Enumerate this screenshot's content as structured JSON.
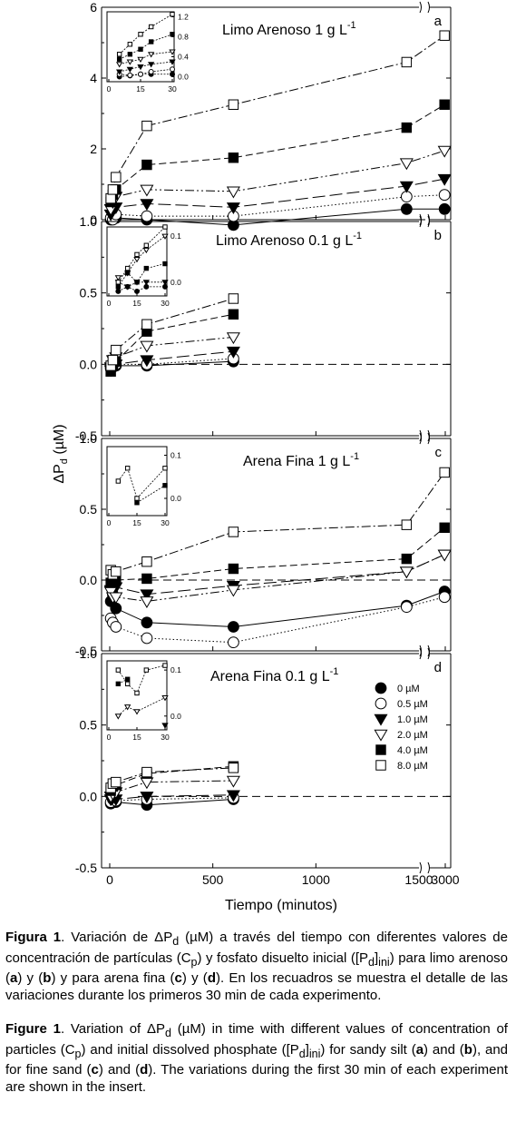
{
  "figure": {
    "ylabel": "ΔP",
    "ylabel_sub": "d",
    "ylabel_unit": "(µM)",
    "xlabel": "Tiempo  (minutos)",
    "x_ticks": [
      "0",
      "500",
      "1000",
      "1500",
      "3000"
    ],
    "legend": [
      {
        "label": "0 µM",
        "marker": "filled-circle"
      },
      {
        "label": "0.5 µM",
        "marker": "open-circle"
      },
      {
        "label": "1.0 µM",
        "marker": "filled-triangle-down"
      },
      {
        "label": "2.0 µM",
        "marker": "open-triangle-down"
      },
      {
        "label": "4.0 µM",
        "marker": "filled-square"
      },
      {
        "label": "8.0 µM",
        "marker": "open-square"
      }
    ]
  },
  "chart_data": [
    {
      "type": "scatter",
      "panel": "a",
      "title": "Limo Arenoso 1 g L",
      "title_sup": "-1",
      "ylim": [
        0,
        6
      ],
      "y_ticks": [
        "0",
        "2",
        "4",
        "6"
      ],
      "x_display": [
        0,
        1500,
        3000
      ],
      "series": [
        {
          "name": "0 µM",
          "line": "solid",
          "x": [
            5,
            15,
            30,
            180,
            600,
            1440,
            2880
          ],
          "y": [
            0.0,
            0.05,
            0.05,
            0.0,
            -0.15,
            0.3,
            0.3
          ]
        },
        {
          "name": "0.5 µM",
          "line": "dotted",
          "x": [
            5,
            15,
            30,
            180,
            600,
            1440,
            2880
          ],
          "y": [
            0.05,
            0.0,
            0.15,
            0.1,
            0.1,
            0.65,
            0.7
          ]
        },
        {
          "name": "1.0 µM",
          "line": "dash-long",
          "x": [
            5,
            15,
            30,
            180,
            600,
            1440,
            2880
          ],
          "y": [
            0.15,
            0.3,
            0.35,
            0.45,
            0.35,
            0.95,
            1.15
          ]
        },
        {
          "name": "2.0 µM",
          "line": "dashdotdot",
          "x": [
            5,
            15,
            30,
            180,
            600,
            1440,
            2880
          ],
          "y": [
            0.3,
            0.5,
            0.65,
            0.85,
            0.8,
            1.6,
            1.95
          ]
        },
        {
          "name": "4.0 µM",
          "line": "dash",
          "x": [
            5,
            15,
            30,
            180,
            600,
            1440,
            2880
          ],
          "y": [
            0.5,
            0.7,
            0.85,
            1.55,
            1.75,
            2.6,
            3.25
          ]
        },
        {
          "name": "8.0 µM",
          "line": "dashdot",
          "x": [
            5,
            15,
            30,
            180,
            600,
            1440,
            2880
          ],
          "y": [
            0.6,
            0.85,
            1.2,
            2.65,
            3.25,
            4.45,
            5.2
          ]
        }
      ],
      "inset": {
        "xlim": [
          0,
          30
        ],
        "ylim": [
          -0.1,
          1.3
        ],
        "x_ticks": [
          "0",
          "15",
          "30"
        ],
        "y_ticks": [
          "0.0",
          "0.4",
          "0.8",
          "1.2"
        ],
        "series": [
          {
            "name": "0 µM",
            "x": [
              5,
              10,
              15,
              20,
              30
            ],
            "y": [
              0.0,
              0.02,
              0.05,
              0.05,
              0.05
            ]
          },
          {
            "name": "0.5 µM",
            "x": [
              5,
              10,
              15,
              20,
              30
            ],
            "y": [
              0.05,
              0.03,
              0.05,
              0.1,
              0.15
            ]
          },
          {
            "name": "1.0 µM",
            "x": [
              5,
              10,
              15,
              20,
              30
            ],
            "y": [
              0.1,
              0.15,
              0.2,
              0.25,
              0.3
            ]
          },
          {
            "name": "2.0 µM",
            "x": [
              5,
              10,
              15,
              20,
              30
            ],
            "y": [
              0.25,
              0.3,
              0.35,
              0.45,
              0.5
            ]
          },
          {
            "name": "4.0 µM",
            "x": [
              5,
              10,
              15,
              20,
              30
            ],
            "y": [
              0.35,
              0.45,
              0.55,
              0.7,
              0.85
            ]
          },
          {
            "name": "8.0 µM",
            "x": [
              5,
              10,
              15,
              20,
              30
            ],
            "y": [
              0.45,
              0.65,
              0.85,
              1.0,
              1.25
            ]
          }
        ]
      }
    },
    {
      "type": "scatter",
      "panel": "b",
      "title": "Limo Arenoso 0.1 g L",
      "title_sup": "-1",
      "ylim": [
        -0.5,
        1.0
      ],
      "y_ticks": [
        "-0.5",
        "0.0",
        "0.5",
        "1.0"
      ],
      "series": [
        {
          "name": "0 µM",
          "line": "solid",
          "x": [
            5,
            15,
            30,
            180,
            600
          ],
          "y": [
            -0.03,
            -0.02,
            -0.01,
            -0.01,
            0.02
          ]
        },
        {
          "name": "0.5 µM",
          "line": "dotted",
          "x": [
            5,
            15,
            30,
            180,
            600
          ],
          "y": [
            -0.02,
            0.0,
            0.0,
            0.0,
            0.04
          ]
        },
        {
          "name": "1.0 µM",
          "line": "dash-long",
          "x": [
            5,
            15,
            30,
            180,
            600
          ],
          "y": [
            -0.04,
            -0.02,
            0.0,
            0.03,
            0.09
          ]
        },
        {
          "name": "2.0 µM",
          "line": "dashdotdot",
          "x": [
            5,
            15,
            30,
            180,
            600
          ],
          "y": [
            -0.02,
            0.03,
            0.05,
            0.13,
            0.19
          ]
        },
        {
          "name": "4.0 µM",
          "line": "dash",
          "x": [
            5,
            15,
            30,
            180,
            600
          ],
          "y": [
            -0.05,
            0.0,
            0.02,
            0.23,
            0.35
          ]
        },
        {
          "name": "8.0 µM",
          "line": "dashdot",
          "x": [
            5,
            15,
            30,
            180,
            600
          ],
          "y": [
            -0.01,
            0.03,
            0.1,
            0.28,
            0.46
          ]
        }
      ],
      "inset": {
        "xlim": [
          0,
          30
        ],
        "ylim": [
          -0.03,
          0.12
        ],
        "x_ticks": [
          "0",
          "15",
          "30"
        ],
        "y_ticks": [
          "0.0",
          "0.1"
        ],
        "series": [
          {
            "name": "0 µM",
            "x": [
              5,
              10,
              15,
              20,
              30
            ],
            "y": [
              -0.02,
              -0.01,
              -0.02,
              -0.01,
              -0.01
            ]
          },
          {
            "name": "1.0 µM",
            "x": [
              5,
              10,
              15,
              20,
              30
            ],
            "y": [
              0.0,
              -0.01,
              0.0,
              0.0,
              0.0
            ]
          },
          {
            "name": "2.0 µM",
            "x": [
              5,
              10,
              15,
              20,
              30
            ],
            "y": [
              0.01,
              0.02,
              0.05,
              0.07,
              0.1
            ]
          },
          {
            "name": "4.0 µM",
            "x": [
              5,
              10,
              15,
              20,
              30
            ],
            "y": [
              -0.01,
              0.02,
              0.0,
              0.03,
              0.04
            ]
          },
          {
            "name": "8.0 µM",
            "x": [
              5,
              10,
              15,
              20,
              30
            ],
            "y": [
              0.0,
              0.03,
              0.06,
              0.08,
              0.12
            ]
          }
        ]
      }
    },
    {
      "type": "scatter",
      "panel": "c",
      "title": "Arena Fina 1 g L",
      "title_sup": "-1",
      "ylim": [
        -0.5,
        1.0
      ],
      "y_ticks": [
        "-0.5",
        "0.0",
        "0.5",
        "1.0"
      ],
      "series": [
        {
          "name": "0 µM",
          "line": "solid",
          "x": [
            5,
            15,
            30,
            180,
            600,
            1440,
            2880
          ],
          "y": [
            -0.15,
            -0.1,
            -0.2,
            -0.3,
            -0.33,
            -0.18,
            -0.08
          ]
        },
        {
          "name": "0.5 µM",
          "line": "dotted",
          "x": [
            5,
            15,
            30,
            180,
            600,
            1440,
            2880
          ],
          "y": [
            -0.27,
            -0.3,
            -0.33,
            -0.41,
            -0.44,
            -0.19,
            -0.12
          ]
        },
        {
          "name": "1.0 µM",
          "line": "dash-long",
          "x": [
            5,
            15,
            30,
            180,
            600,
            1440,
            2880
          ],
          "y": [
            -0.07,
            -0.06,
            -0.05,
            -0.1,
            -0.04,
            0.06,
            0.18
          ]
        },
        {
          "name": "2.0 µM",
          "line": "dashdotdot",
          "x": [
            5,
            15,
            30,
            180,
            600,
            1440,
            2880
          ],
          "y": [
            -0.08,
            -0.12,
            -0.12,
            -0.15,
            -0.07,
            0.06,
            0.18
          ]
        },
        {
          "name": "4.0 µM",
          "line": "dash",
          "x": [
            5,
            15,
            30,
            180,
            600,
            1440,
            2880
          ],
          "y": [
            -0.02,
            0.02,
            0.0,
            0.01,
            0.08,
            0.15,
            0.37
          ]
        },
        {
          "name": "8.0 µM",
          "line": "dashdot",
          "x": [
            5,
            15,
            30,
            180,
            600,
            1440,
            2880
          ],
          "y": [
            0.07,
            0.04,
            0.06,
            0.13,
            0.34,
            0.39,
            0.76
          ]
        }
      ],
      "inset": {
        "xlim": [
          0,
          30
        ],
        "ylim": [
          -0.04,
          0.12
        ],
        "x_ticks": [
          "0",
          "15",
          "30"
        ],
        "y_ticks": [
          "0.0",
          "0.1"
        ],
        "series": [
          {
            "name": "4.0 µM",
            "x": [
              15,
              30
            ],
            "y": [
              -0.01,
              0.03
            ]
          },
          {
            "name": "8.0 µM",
            "x": [
              5,
              10,
              15,
              30
            ],
            "y": [
              0.04,
              0.07,
              0.0,
              0.07
            ]
          }
        ]
      }
    },
    {
      "type": "scatter",
      "panel": "d",
      "title": "Arena Fina 0.1 g L",
      "title_sup": "-1",
      "ylim": [
        -0.5,
        1.0
      ],
      "y_ticks": [
        "-0.5",
        "0.0",
        "0.5",
        "1.0"
      ],
      "series": [
        {
          "name": "0 µM",
          "line": "solid",
          "x": [
            5,
            15,
            30,
            180,
            600
          ],
          "y": [
            -0.05,
            -0.03,
            -0.04,
            -0.06,
            -0.02
          ]
        },
        {
          "name": "0.5 µM",
          "line": "dotted",
          "x": [
            5,
            15,
            30,
            180,
            600
          ],
          "y": [
            -0.04,
            -0.02,
            -0.03,
            -0.02,
            -0.01
          ]
        },
        {
          "name": "1.0 µM",
          "line": "dash-long",
          "x": [
            5,
            15,
            30,
            180,
            600
          ],
          "y": [
            -0.02,
            -0.01,
            -0.02,
            0.0,
            0.01
          ]
        },
        {
          "name": "2.0 µM",
          "line": "dashdotdot",
          "x": [
            5,
            15,
            30,
            180,
            600
          ],
          "y": [
            0.0,
            0.02,
            0.03,
            0.1,
            0.11
          ]
        },
        {
          "name": "4.0 µM",
          "line": "dash",
          "x": [
            5,
            15,
            30,
            180,
            600
          ],
          "y": [
            0.04,
            0.07,
            0.08,
            0.16,
            0.21
          ]
        },
        {
          "name": "8.0 µM",
          "line": "dashdot",
          "x": [
            5,
            15,
            30,
            180,
            600
          ],
          "y": [
            0.06,
            0.09,
            0.1,
            0.17,
            0.2
          ]
        }
      ],
      "inset": {
        "xlim": [
          0,
          30
        ],
        "ylim": [
          -0.03,
          0.12
        ],
        "x_ticks": [
          "0",
          "15",
          "30"
        ],
        "y_ticks": [
          "0.0",
          "0.1"
        ],
        "series": [
          {
            "name": "1.0 µM",
            "x": [
              30
            ],
            "y": [
              -0.02
            ]
          },
          {
            "name": "2.0 µM",
            "x": [
              5,
              10,
              15,
              30
            ],
            "y": [
              0.0,
              0.02,
              0.01,
              0.04
            ]
          },
          {
            "name": "4.0 µM",
            "x": [
              5,
              10
            ],
            "y": [
              0.07,
              0.08
            ]
          },
          {
            "name": "8.0 µM",
            "x": [
              5,
              10,
              15,
              20,
              30
            ],
            "y": [
              0.1,
              0.07,
              0.05,
              0.1,
              0.11
            ]
          }
        ]
      }
    }
  ],
  "caption_es": {
    "label": "Figura 1",
    "t1": ". Variación de ΔP",
    "s1": "d",
    "t2": " (µM) a través del tiempo con diferentes valores de concentración de partículas (C",
    "s2": "p",
    "t3": ") y fosfato disuelto inicial ([P",
    "s3": "d",
    "t4": "]",
    "s4": "ini",
    "t5": ") para limo arenoso (",
    "b1": "a",
    "t6": ") y (",
    "b2": "b",
    "t7": ") y para arena fina (",
    "b3": "c",
    "t8": ") y (",
    "b4": "d",
    "t9": "). En los recuadros se muestra el detalle de las variaciones durante los primeros 30 min de cada experimento."
  },
  "caption_en": {
    "label": "Figure 1",
    "t1": ". Variation of ΔP",
    "s1": "d",
    "t2": " (µM) in time with different values of concentration of particles (C",
    "s2": "p",
    "t3": ") and initial dissolved phosphate ([P",
    "s3": "d",
    "t4": "]",
    "s4": "ini",
    "t5": ") for sandy silt (",
    "b1": "a",
    "t6": ") and (",
    "b2": "b",
    "t7": "), and for fine sand (",
    "b3": "c",
    "t8": ") and (",
    "b4": "d",
    "t9": "). The variations during the first 30 min of each experiment are shown in the insert."
  }
}
